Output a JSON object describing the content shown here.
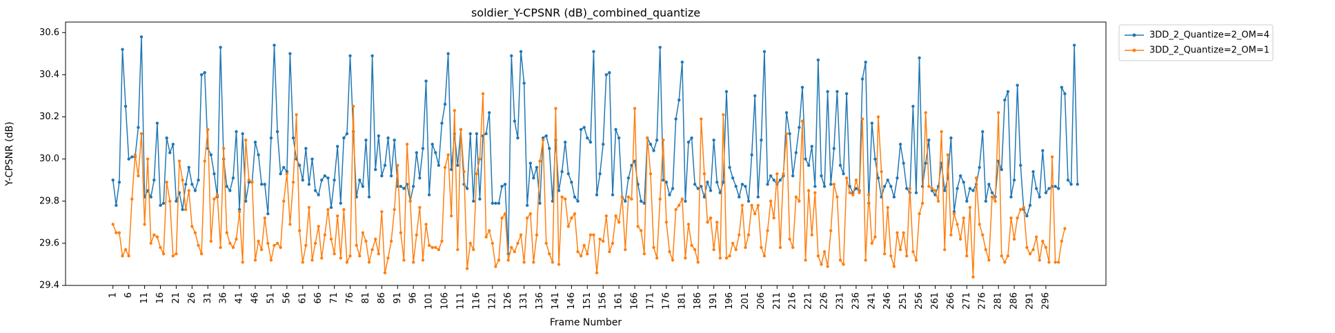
{
  "chart_data": {
    "type": "line",
    "title": "soldier_Y-CPSNR (dB)_combined_quantize",
    "xlabel": "Frame Number",
    "ylabel": "Y-CPSNR (dB)",
    "xlim": [
      -14,
      315
    ],
    "ylim": [
      29.4,
      30.65
    ],
    "x_start": 1,
    "x_ticks": [
      1,
      6,
      11,
      16,
      21,
      26,
      31,
      36,
      41,
      46,
      51,
      56,
      61,
      66,
      71,
      76,
      81,
      86,
      91,
      96,
      101,
      106,
      111,
      116,
      121,
      126,
      131,
      136,
      141,
      146,
      151,
      156,
      161,
      166,
      171,
      176,
      181,
      186,
      191,
      196,
      201,
      206,
      211,
      216,
      221,
      226,
      231,
      236,
      241,
      246,
      251,
      256,
      261,
      266,
      271,
      276,
      281,
      286,
      291,
      296
    ],
    "y_ticks": [
      29.4,
      29.6,
      29.8,
      30.0,
      30.2,
      30.4,
      30.6
    ],
    "y_tick_labels": [
      "29.4",
      "29.6",
      "29.8",
      "30.0",
      "30.2",
      "30.4",
      "30.6"
    ],
    "grid": false,
    "legend_position": "outside-top-right",
    "series": [
      {
        "name": "3DD_2_Quantize=2_OM=4",
        "color": "#1f77b4",
        "values": [
          29.9,
          29.78,
          29.89,
          30.52,
          30.25,
          30.0,
          30.01,
          30.01,
          30.15,
          30.58,
          29.82,
          29.85,
          29.82,
          29.9,
          30.17,
          29.78,
          29.79,
          30.1,
          30.03,
          30.07,
          29.8,
          29.84,
          29.76,
          29.88,
          29.96,
          29.88,
          29.85,
          29.9,
          30.4,
          30.41,
          30.05,
          30.02,
          29.93,
          29.82,
          30.53,
          30.0,
          29.87,
          29.85,
          29.91,
          30.13,
          29.76,
          30.12,
          29.8,
          29.89,
          29.89,
          30.08,
          30.02,
          29.88,
          29.88,
          29.74,
          30.1,
          30.54,
          30.13,
          29.93,
          29.96,
          29.94,
          30.5,
          30.1,
          30.0,
          29.97,
          29.9,
          30.05,
          29.88,
          30.0,
          29.85,
          29.83,
          29.9,
          29.92,
          29.91,
          29.77,
          29.9,
          30.06,
          29.79,
          30.1,
          30.12,
          30.49,
          30.13,
          29.82,
          29.9,
          29.87,
          30.09,
          29.82,
          30.49,
          29.95,
          30.11,
          29.92,
          29.97,
          30.1,
          29.92,
          30.09,
          29.87,
          29.87,
          29.86,
          29.88,
          29.8,
          29.87,
          30.03,
          29.91,
          30.05,
          30.37,
          29.83,
          30.07,
          30.03,
          29.97,
          30.17,
          30.26,
          30.5,
          29.95,
          30.12,
          29.97,
          30.14,
          29.88,
          29.86,
          30.12,
          29.8,
          30.12,
          29.81,
          30.11,
          30.12,
          30.22,
          29.79,
          29.79,
          29.79,
          29.87,
          29.88,
          29.55,
          30.49,
          30.18,
          30.1,
          30.51,
          30.36,
          29.78,
          29.98,
          29.91,
          29.96,
          29.79,
          30.1,
          30.11,
          30.05,
          29.8,
          30.09,
          29.85,
          29.94,
          30.08,
          29.93,
          29.89,
          29.82,
          29.8,
          30.14,
          30.15,
          30.1,
          30.08,
          30.51,
          29.83,
          29.93,
          30.07,
          30.4,
          30.41,
          29.83,
          30.14,
          30.1,
          29.82,
          29.8,
          29.91,
          29.97,
          29.99,
          29.88,
          29.8,
          29.79,
          30.1,
          30.07,
          30.04,
          30.09,
          30.53,
          29.9,
          29.89,
          29.83,
          29.86,
          30.19,
          30.28,
          30.46,
          29.8,
          30.08,
          30.1,
          29.88,
          29.86,
          29.87,
          29.82,
          29.89,
          29.85,
          30.09,
          29.89,
          29.84,
          29.89,
          30.32,
          29.96,
          29.91,
          29.87,
          29.82,
          29.88,
          29.87,
          29.8,
          30.02,
          30.3,
          29.82,
          30.09,
          30.51,
          29.88,
          29.92,
          29.9,
          29.88,
          29.9,
          29.92,
          30.22,
          30.12,
          29.92,
          30.03,
          30.15,
          30.34,
          30.0,
          29.97,
          30.06,
          29.87,
          30.47,
          29.92,
          29.87,
          30.32,
          29.88,
          30.05,
          30.32,
          29.97,
          29.93,
          30.31,
          29.87,
          29.84,
          29.86,
          29.85,
          30.38,
          30.46,
          29.79,
          30.17,
          30.0,
          29.91,
          29.82,
          29.87,
          29.9,
          29.87,
          29.82,
          29.91,
          30.07,
          29.98,
          29.86,
          29.84,
          30.25,
          29.84,
          30.48,
          29.87,
          29.98,
          30.09,
          29.85,
          29.83,
          29.87,
          29.98,
          29.85,
          29.91,
          30.1,
          29.75,
          29.86,
          29.92,
          29.89,
          29.8,
          29.86,
          29.85,
          29.88,
          29.96,
          30.13,
          29.8,
          29.88,
          29.84,
          29.82,
          29.99,
          29.95,
          30.28,
          30.32,
          29.82,
          29.9,
          30.35,
          29.97,
          29.76,
          29.73,
          29.78,
          29.94,
          29.86,
          29.82,
          30.04,
          29.84,
          29.86,
          29.87,
          29.87,
          29.86,
          30.34,
          30.31,
          29.9,
          29.88,
          30.54,
          29.88
        ]
      },
      {
        "name": "3DD_2_Quantize=2_OM=1",
        "color": "#ff7f0e",
        "values": [
          29.69,
          29.65,
          29.65,
          29.54,
          29.57,
          29.54,
          29.81,
          30.02,
          29.92,
          30.12,
          29.69,
          30.0,
          29.6,
          29.64,
          29.63,
          29.58,
          29.55,
          29.89,
          29.8,
          29.54,
          29.55,
          29.99,
          29.9,
          29.76,
          29.85,
          29.68,
          29.65,
          29.59,
          29.55,
          29.99,
          30.14,
          29.61,
          29.81,
          29.83,
          29.58,
          30.05,
          29.65,
          29.6,
          29.58,
          29.62,
          29.75,
          29.51,
          30.09,
          29.9,
          29.89,
          29.52,
          29.61,
          29.57,
          29.72,
          29.6,
          29.52,
          29.59,
          29.6,
          29.58,
          29.8,
          29.93,
          29.69,
          29.89,
          30.21,
          29.66,
          29.51,
          29.59,
          29.77,
          29.52,
          29.6,
          29.68,
          29.53,
          29.64,
          29.76,
          29.62,
          29.55,
          29.73,
          29.53,
          29.76,
          29.51,
          29.54,
          30.25,
          29.59,
          29.54,
          29.65,
          29.61,
          29.51,
          29.57,
          29.62,
          29.55,
          29.75,
          29.46,
          29.53,
          29.61,
          29.76,
          29.97,
          29.65,
          29.52,
          30.07,
          29.8,
          29.51,
          29.64,
          29.77,
          29.52,
          29.69,
          29.59,
          29.58,
          29.58,
          29.57,
          29.61,
          29.96,
          30.02,
          29.73,
          30.23,
          29.57,
          30.14,
          29.94,
          29.48,
          29.6,
          29.57,
          29.93,
          30.0,
          30.31,
          29.63,
          29.66,
          29.6,
          29.49,
          29.52,
          29.72,
          29.74,
          29.52,
          29.58,
          29.56,
          29.6,
          29.64,
          29.51,
          29.72,
          29.74,
          29.51,
          29.64,
          29.99,
          30.09,
          29.6,
          29.55,
          29.51,
          30.24,
          29.5,
          29.82,
          29.81,
          29.68,
          29.72,
          29.74,
          29.56,
          29.54,
          29.59,
          29.55,
          29.64,
          29.64,
          29.46,
          29.62,
          29.61,
          29.73,
          29.56,
          29.6,
          29.73,
          29.7,
          29.82,
          29.57,
          29.82,
          29.81,
          30.24,
          29.68,
          29.66,
          29.55,
          30.1,
          29.93,
          29.58,
          29.53,
          29.81,
          30.09,
          29.7,
          29.56,
          29.52,
          29.76,
          29.78,
          29.81,
          29.53,
          29.69,
          29.59,
          29.57,
          29.51,
          30.19,
          29.93,
          29.7,
          29.72,
          29.57,
          29.7,
          29.53,
          30.21,
          29.53,
          29.54,
          29.6,
          29.57,
          29.64,
          29.78,
          29.58,
          29.64,
          29.78,
          29.74,
          29.78,
          29.58,
          29.54,
          29.66,
          29.8,
          29.72,
          29.93,
          29.58,
          29.93,
          30.12,
          29.62,
          29.58,
          29.82,
          29.8,
          30.18,
          29.52,
          29.85,
          29.64,
          29.84,
          29.54,
          29.5,
          29.56,
          29.49,
          29.66,
          29.88,
          29.82,
          29.52,
          29.5,
          29.91,
          29.84,
          29.83,
          29.9,
          29.84,
          30.19,
          29.52,
          29.83,
          29.6,
          29.63,
          30.2,
          29.94,
          29.55,
          29.77,
          29.54,
          29.49,
          29.65,
          29.57,
          29.65,
          29.54,
          29.86,
          29.56,
          29.52,
          29.74,
          29.79,
          30.22,
          29.87,
          29.86,
          29.85,
          29.8,
          30.13,
          29.57,
          30.02,
          29.64,
          29.74,
          29.69,
          29.62,
          29.72,
          29.54,
          29.77,
          29.44,
          29.91,
          29.69,
          29.64,
          29.57,
          29.52,
          29.82,
          29.8,
          30.22,
          29.54,
          29.51,
          29.54,
          29.72,
          29.62,
          29.72,
          29.76,
          29.77,
          29.58,
          29.55,
          29.57,
          29.63,
          29.52,
          29.61,
          29.58,
          29.51,
          30.01,
          29.51,
          29.51,
          29.61,
          29.67
        ]
      }
    ]
  }
}
